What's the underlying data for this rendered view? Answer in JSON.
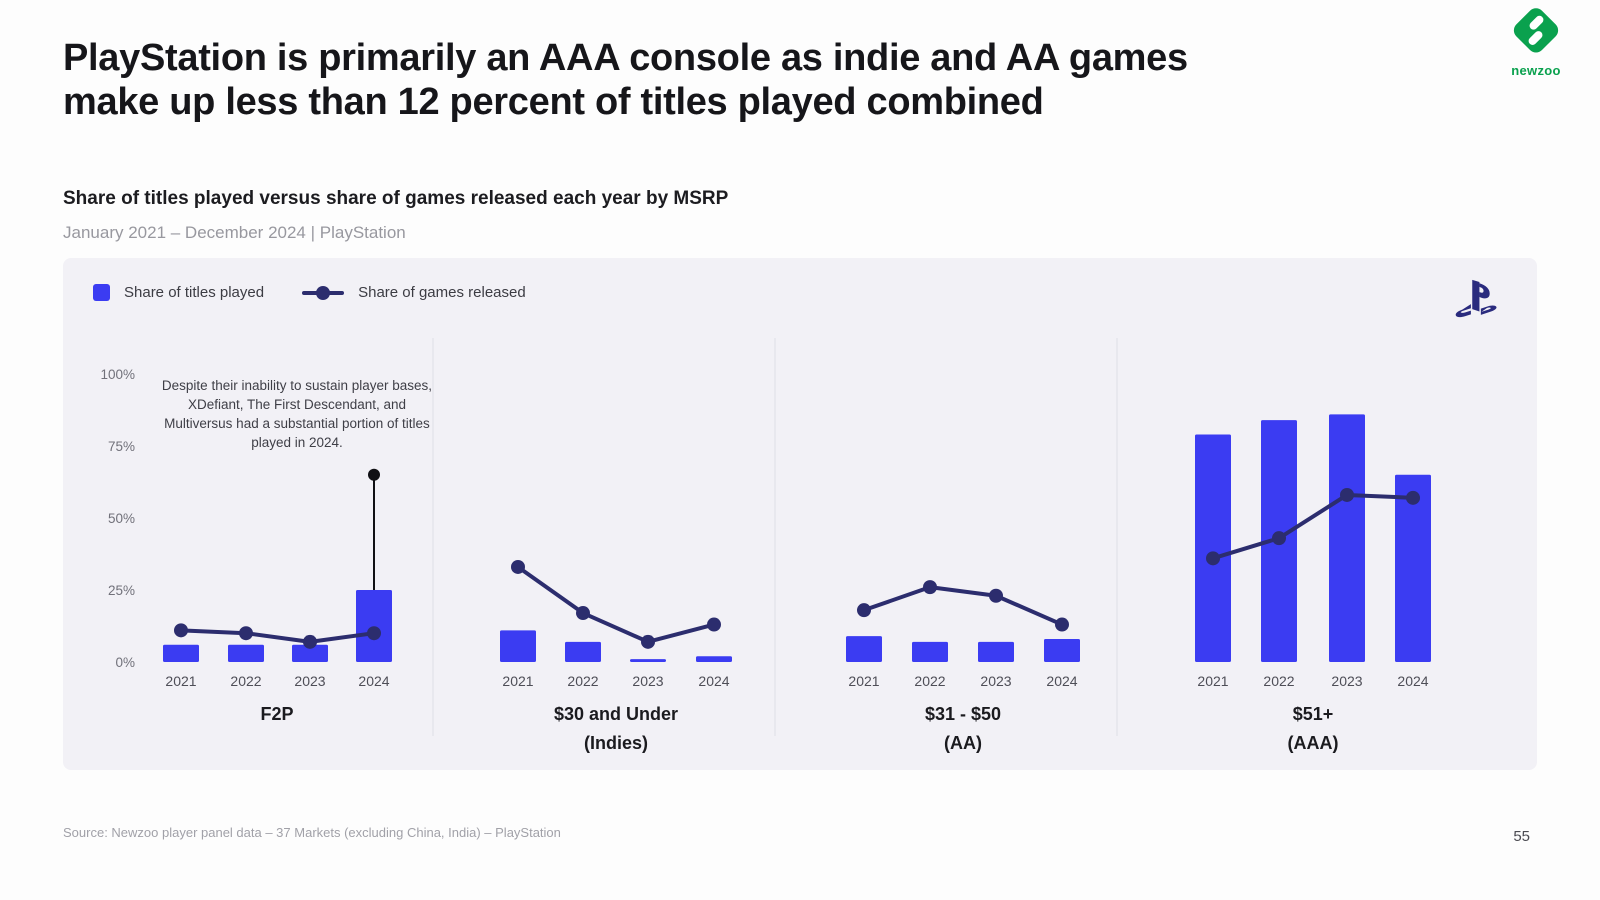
{
  "page": {
    "title_line1": "PlayStation is primarily an AAA console as indie and AA games",
    "title_line2": "make up less than 12 percent of titles played combined",
    "subtitle": "Share of titles played versus share of games released each year by MSRP",
    "period": "January 2021 – December 2024 | PlayStation",
    "source": "Source: Newzoo player panel data – 37 Markets (excluding China, India) – PlayStation",
    "page_number": "55"
  },
  "branding": {
    "newzoo_wordmark": "newzoo",
    "newzoo_green": "#0aa14e",
    "playstation_navy": "#2a2b7e"
  },
  "legend": {
    "items": [
      {
        "label": "Share of titles played",
        "type": "bar-swatch"
      },
      {
        "label": "Share of games released",
        "type": "line-marker"
      }
    ]
  },
  "annotation": {
    "text": "Despite their inability to sustain player bases, XDefiant, The First Descendant, and Multiversus had a substantial portion of titles played in 2024.",
    "pointer_panel": "F2P",
    "pointer_year": "2024",
    "pointer_top_value": 65
  },
  "colors": {
    "bar": "#3b3cf2",
    "line": "#2c2d6e",
    "divider": "#dfdfe5",
    "card_bg": "#f2f1f6",
    "annotation_pointer": "#101014"
  },
  "chart_data": {
    "type": "bar",
    "subtype": "small-multiples combo: bars (share of titles played) + line with dots (share of games released)",
    "categories": [
      "2021",
      "2022",
      "2023",
      "2024"
    ],
    "ylabel": "",
    "ylim": [
      0,
      100
    ],
    "grid": false,
    "legend_position": "top-left",
    "y_ticks": [
      {
        "value": 100,
        "label": "100%"
      },
      {
        "value": 75,
        "label": "75%"
      },
      {
        "value": 50,
        "label": "50%"
      },
      {
        "value": 25,
        "label": "25%"
      },
      {
        "value": 0,
        "label": "0%"
      }
    ],
    "series_names": [
      "Share of titles played",
      "Share of games released"
    ],
    "panels": [
      {
        "label": "F2P",
        "sublabel": "",
        "titles_played_pct": [
          6,
          6,
          6,
          25
        ],
        "games_released_pct": [
          11,
          10,
          7,
          10
        ]
      },
      {
        "label": "$30 and Under",
        "sublabel": "(Indies)",
        "titles_played_pct": [
          11,
          7,
          1,
          2
        ],
        "games_released_pct": [
          33,
          17,
          7,
          13
        ]
      },
      {
        "label": "$31 - $50",
        "sublabel": "(AA)",
        "titles_played_pct": [
          9,
          7,
          7,
          8
        ],
        "games_released_pct": [
          18,
          26,
          23,
          13
        ]
      },
      {
        "label": "$51+",
        "sublabel": "(AAA)",
        "titles_played_pct": [
          79,
          84,
          86,
          65
        ],
        "games_released_pct": [
          36,
          43,
          58,
          57
        ]
      }
    ]
  }
}
